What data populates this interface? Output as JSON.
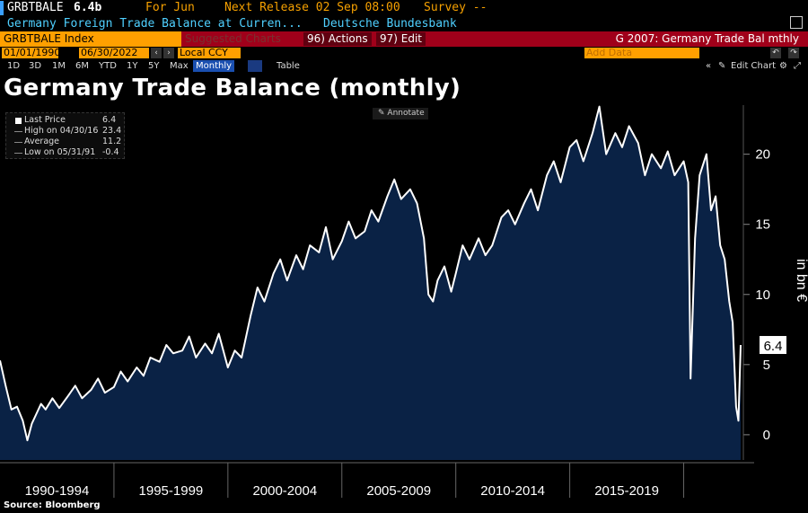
{
  "header": {
    "ticker": "GRBTBALE",
    "last_value": "6.4b",
    "for_label": "For Jun",
    "next_release": "Next Release 02 Sep 08:00",
    "survey": "Survey --",
    "description": "Germany Foreign Trade Balance at Curren...",
    "source": "Deutsche Bundesbank"
  },
  "toolbar": {
    "security": "GRBTBALE Index",
    "suggested": "Suggested Charts",
    "actions": "96) Actions",
    "edit": "97) Edit",
    "chart_name": "G 2007: Germany Trade Bal mthly",
    "start_date": "01/01/1990",
    "end_date": "06/30/2022",
    "currency": "Local CCY",
    "add_data": "Add Data",
    "edit_chart": "Edit Chart",
    "periods": [
      "1D",
      "3D",
      "1M",
      "6M",
      "YTD",
      "1Y",
      "5Y",
      "Max"
    ],
    "frequency": "Monthly",
    "table": "Table"
  },
  "title": "Germany Trade Balance (monthly)",
  "legend": {
    "last_price_label": "Last Price",
    "last_price_value": "6.4",
    "high_label": "High on 04/30/16",
    "high_value": "23.4",
    "average_label": "Average",
    "average_value": "11.2",
    "low_label": "Low on 05/31/91",
    "low_value": "-0.4"
  },
  "annotate": "Annotate",
  "source_note": "Source: Bloomberg",
  "colors": {
    "area": "#0a2245",
    "line": "#ffffff",
    "background": "#000000",
    "last_tag": "#ffffff"
  },
  "chart_data": {
    "type": "area",
    "ylabel": "in bn €",
    "ylim": [
      -1.8,
      23.5
    ],
    "yticks": [
      0,
      5,
      10,
      15,
      20
    ],
    "xlim": [
      1990.0,
      2022.5
    ],
    "x_categories": [
      "1990-1994",
      "1995-1999",
      "2000-2004",
      "2005-2009",
      "2010-2014",
      "2015-2019"
    ],
    "last_value_label": "6.4",
    "series": [
      {
        "x": [
          1990.0,
          1990.25,
          1990.5,
          1990.75,
          1991.0,
          1991.2,
          1991.4,
          1991.6,
          1991.8,
          1992.0,
          1992.3,
          1992.6,
          1993.0,
          1993.3,
          1993.6,
          1994.0,
          1994.3,
          1994.6,
          1995.0,
          1995.3,
          1995.6,
          1996.0,
          1996.3,
          1996.6,
          1997.0,
          1997.3,
          1997.6,
          1998.0,
          1998.3,
          1998.6,
          1999.0,
          1999.3,
          1999.6,
          2000.0,
          2000.3,
          2000.6,
          2001.0,
          2001.3,
          2001.6,
          2002.0,
          2002.3,
          2002.6,
          2003.0,
          2003.3,
          2003.6,
          2004.0,
          2004.3,
          2004.6,
          2005.0,
          2005.3,
          2005.6,
          2006.0,
          2006.3,
          2006.6,
          2007.0,
          2007.3,
          2007.6,
          2008.0,
          2008.3,
          2008.6,
          2008.8,
          2009.0,
          2009.2,
          2009.5,
          2009.8,
          2010.0,
          2010.3,
          2010.6,
          2011.0,
          2011.3,
          2011.6,
          2012.0,
          2012.3,
          2012.6,
          2013.0,
          2013.3,
          2013.6,
          2014.0,
          2014.3,
          2014.6,
          2015.0,
          2015.3,
          2015.6,
          2016.0,
          2016.3,
          2016.6,
          2017.0,
          2017.3,
          2017.6,
          2018.0,
          2018.3,
          2018.6,
          2019.0,
          2019.3,
          2019.6,
          2020.0,
          2020.2,
          2020.3,
          2020.5,
          2020.7,
          2021.0,
          2021.2,
          2021.4,
          2021.6,
          2021.8,
          2022.0,
          2022.15,
          2022.3,
          2022.4,
          2022.5
        ],
        "values": [
          5.3,
          3.5,
          1.8,
          2.0,
          1.0,
          -0.4,
          0.8,
          1.5,
          2.2,
          1.8,
          2.6,
          1.9,
          2.8,
          3.5,
          2.6,
          3.2,
          4.0,
          3.0,
          3.4,
          4.5,
          3.8,
          4.8,
          4.2,
          5.5,
          5.2,
          6.4,
          5.8,
          6.0,
          7.0,
          5.5,
          6.5,
          5.8,
          7.2,
          4.8,
          6.0,
          5.5,
          8.5,
          10.5,
          9.5,
          11.5,
          12.5,
          11.0,
          12.8,
          11.8,
          13.5,
          13.0,
          14.8,
          12.5,
          13.8,
          15.2,
          14.0,
          14.5,
          16.0,
          15.2,
          17.0,
          18.2,
          16.8,
          17.5,
          16.5,
          14.0,
          10.0,
          9.5,
          11.0,
          12.0,
          10.2,
          11.5,
          13.5,
          12.5,
          14.0,
          12.8,
          13.5,
          15.5,
          16.0,
          15.0,
          16.5,
          17.5,
          16.0,
          18.5,
          19.5,
          18.0,
          20.5,
          21.0,
          19.5,
          21.5,
          23.4,
          20.0,
          21.5,
          20.5,
          22.0,
          20.8,
          18.5,
          20.0,
          19.0,
          20.2,
          18.5,
          19.5,
          18.0,
          4.0,
          14.0,
          18.5,
          20.0,
          16.0,
          17.0,
          13.5,
          12.5,
          9.5,
          8.0,
          2.0,
          1.0,
          6.4
        ]
      }
    ]
  }
}
